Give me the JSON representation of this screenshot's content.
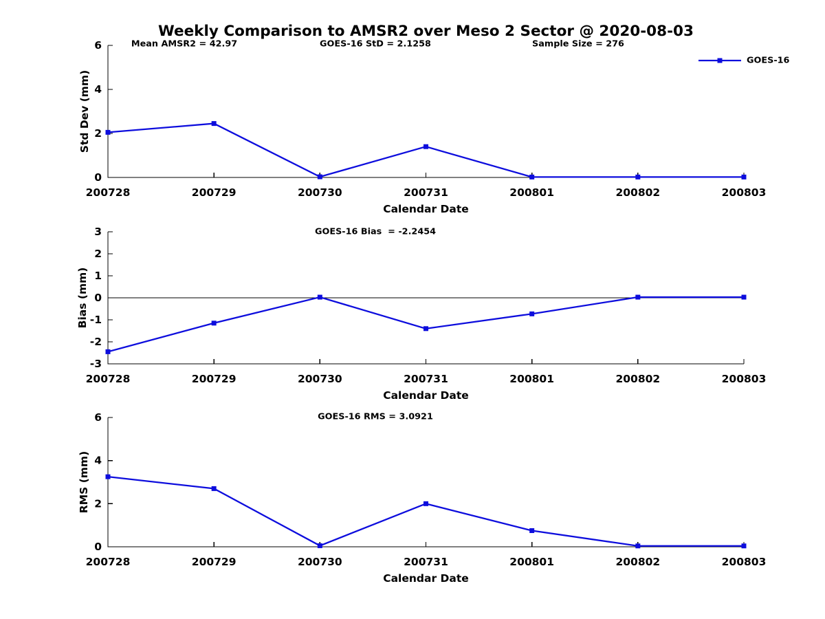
{
  "title": "Weekly Comparison to AMSR2 over Meso 2 Sector @ 2020-08-03",
  "colors": {
    "series": "#0d0ddd",
    "axis": "#000000",
    "text": "#000000",
    "background": "#ffffff"
  },
  "legend": {
    "label": "GOES-16",
    "position": "top-right"
  },
  "chart_data": [
    {
      "type": "line",
      "id": "std-dev",
      "ylabel": "Std Dev (mm)",
      "xlabel": "Calendar Date",
      "x": [
        "200728",
        "200729",
        "200730",
        "200731",
        "200801",
        "200802",
        "200803"
      ],
      "ylim": [
        0,
        6
      ],
      "yticks": [
        0,
        2,
        4,
        6
      ],
      "grid": false,
      "zero_line": false,
      "legend_visible": true,
      "annotations": [
        "Mean AMSR2 = 42.97",
        "GOES-16 StD = 2.1258",
        "Sample Size = 276"
      ],
      "series": [
        {
          "name": "GOES-16",
          "marker": "square",
          "values": [
            2.05,
            2.45,
            0.03,
            1.4,
            0.02,
            0.02,
            0.02
          ]
        }
      ]
    },
    {
      "type": "line",
      "id": "bias",
      "ylabel": "Bias (mm)",
      "xlabel": "Calendar Date",
      "x": [
        "200728",
        "200729",
        "200730",
        "200731",
        "200801",
        "200802",
        "200803"
      ],
      "ylim": [
        -3,
        3
      ],
      "yticks": [
        -3,
        -2,
        -1,
        0,
        1,
        2,
        3
      ],
      "grid": false,
      "zero_line": true,
      "legend_visible": false,
      "annotations": [
        "GOES-16 Bias  = -2.2454"
      ],
      "series": [
        {
          "name": "GOES-16",
          "marker": "square",
          "values": [
            -2.45,
            -1.15,
            0.03,
            -1.4,
            -0.73,
            0.03,
            0.03
          ]
        }
      ]
    },
    {
      "type": "line",
      "id": "rms",
      "ylabel": "RMS (mm)",
      "xlabel": "Calendar Date",
      "x": [
        "200728",
        "200729",
        "200730",
        "200731",
        "200801",
        "200802",
        "200803"
      ],
      "ylim": [
        0,
        6
      ],
      "yticks": [
        0,
        2,
        4,
        6
      ],
      "grid": false,
      "zero_line": false,
      "legend_visible": false,
      "annotations": [
        "GOES-16 RMS = 3.0921"
      ],
      "series": [
        {
          "name": "GOES-16",
          "marker": "square",
          "values": [
            3.25,
            2.7,
            0.05,
            2.0,
            0.75,
            0.04,
            0.04
          ]
        }
      ]
    }
  ]
}
